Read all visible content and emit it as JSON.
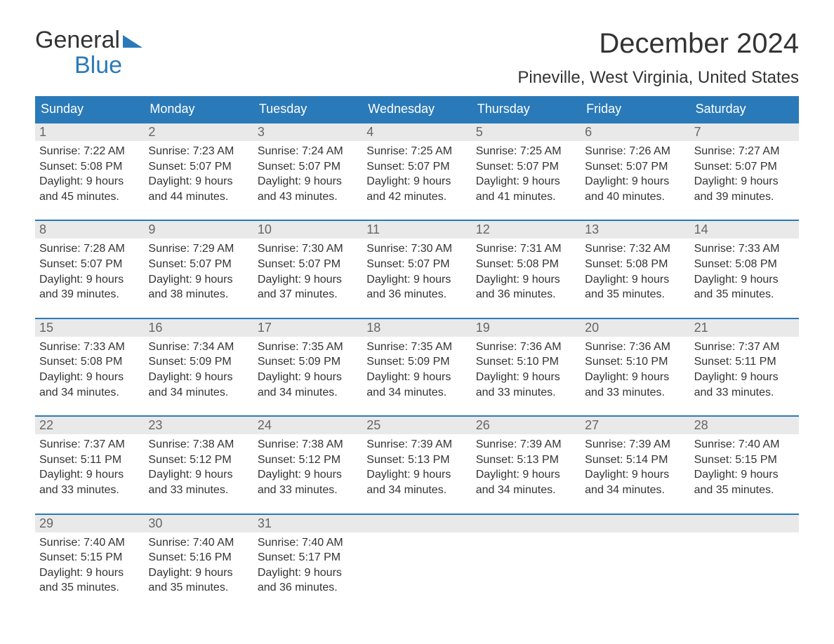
{
  "brand": {
    "general": "General",
    "blue": "Blue"
  },
  "title": "December 2024",
  "location": "Pineville, West Virginia, United States",
  "colors": {
    "header_bg": "#2a7ab9",
    "header_text": "#ffffff",
    "daynum_bg": "#e9e9e9",
    "daynum_text": "#666666",
    "body_text": "#333333",
    "rule": "#2a7ab9",
    "page_bg": "#ffffff"
  },
  "typography": {
    "month_title_pt": 40,
    "location_pt": 24,
    "dow_pt": 18,
    "daynum_pt": 18,
    "body_pt": 16
  },
  "dow": [
    "Sunday",
    "Monday",
    "Tuesday",
    "Wednesday",
    "Thursday",
    "Friday",
    "Saturday"
  ],
  "labels": {
    "sunrise": "Sunrise:",
    "sunset": "Sunset:",
    "daylight": "Daylight:"
  },
  "weeks": [
    [
      {
        "n": "1",
        "sr": "7:22 AM",
        "ss": "5:08 PM",
        "dl1": "9 hours",
        "dl2": "and 45 minutes."
      },
      {
        "n": "2",
        "sr": "7:23 AM",
        "ss": "5:07 PM",
        "dl1": "9 hours",
        "dl2": "and 44 minutes."
      },
      {
        "n": "3",
        "sr": "7:24 AM",
        "ss": "5:07 PM",
        "dl1": "9 hours",
        "dl2": "and 43 minutes."
      },
      {
        "n": "4",
        "sr": "7:25 AM",
        "ss": "5:07 PM",
        "dl1": "9 hours",
        "dl2": "and 42 minutes."
      },
      {
        "n": "5",
        "sr": "7:25 AM",
        "ss": "5:07 PM",
        "dl1": "9 hours",
        "dl2": "and 41 minutes."
      },
      {
        "n": "6",
        "sr": "7:26 AM",
        "ss": "5:07 PM",
        "dl1": "9 hours",
        "dl2": "and 40 minutes."
      },
      {
        "n": "7",
        "sr": "7:27 AM",
        "ss": "5:07 PM",
        "dl1": "9 hours",
        "dl2": "and 39 minutes."
      }
    ],
    [
      {
        "n": "8",
        "sr": "7:28 AM",
        "ss": "5:07 PM",
        "dl1": "9 hours",
        "dl2": "and 39 minutes."
      },
      {
        "n": "9",
        "sr": "7:29 AM",
        "ss": "5:07 PM",
        "dl1": "9 hours",
        "dl2": "and 38 minutes."
      },
      {
        "n": "10",
        "sr": "7:30 AM",
        "ss": "5:07 PM",
        "dl1": "9 hours",
        "dl2": "and 37 minutes."
      },
      {
        "n": "11",
        "sr": "7:30 AM",
        "ss": "5:07 PM",
        "dl1": "9 hours",
        "dl2": "and 36 minutes."
      },
      {
        "n": "12",
        "sr": "7:31 AM",
        "ss": "5:08 PM",
        "dl1": "9 hours",
        "dl2": "and 36 minutes."
      },
      {
        "n": "13",
        "sr": "7:32 AM",
        "ss": "5:08 PM",
        "dl1": "9 hours",
        "dl2": "and 35 minutes."
      },
      {
        "n": "14",
        "sr": "7:33 AM",
        "ss": "5:08 PM",
        "dl1": "9 hours",
        "dl2": "and 35 minutes."
      }
    ],
    [
      {
        "n": "15",
        "sr": "7:33 AM",
        "ss": "5:08 PM",
        "dl1": "9 hours",
        "dl2": "and 34 minutes."
      },
      {
        "n": "16",
        "sr": "7:34 AM",
        "ss": "5:09 PM",
        "dl1": "9 hours",
        "dl2": "and 34 minutes."
      },
      {
        "n": "17",
        "sr": "7:35 AM",
        "ss": "5:09 PM",
        "dl1": "9 hours",
        "dl2": "and 34 minutes."
      },
      {
        "n": "18",
        "sr": "7:35 AM",
        "ss": "5:09 PM",
        "dl1": "9 hours",
        "dl2": "and 34 minutes."
      },
      {
        "n": "19",
        "sr": "7:36 AM",
        "ss": "5:10 PM",
        "dl1": "9 hours",
        "dl2": "and 33 minutes."
      },
      {
        "n": "20",
        "sr": "7:36 AM",
        "ss": "5:10 PM",
        "dl1": "9 hours",
        "dl2": "and 33 minutes."
      },
      {
        "n": "21",
        "sr": "7:37 AM",
        "ss": "5:11 PM",
        "dl1": "9 hours",
        "dl2": "and 33 minutes."
      }
    ],
    [
      {
        "n": "22",
        "sr": "7:37 AM",
        "ss": "5:11 PM",
        "dl1": "9 hours",
        "dl2": "and 33 minutes."
      },
      {
        "n": "23",
        "sr": "7:38 AM",
        "ss": "5:12 PM",
        "dl1": "9 hours",
        "dl2": "and 33 minutes."
      },
      {
        "n": "24",
        "sr": "7:38 AM",
        "ss": "5:12 PM",
        "dl1": "9 hours",
        "dl2": "and 33 minutes."
      },
      {
        "n": "25",
        "sr": "7:39 AM",
        "ss": "5:13 PM",
        "dl1": "9 hours",
        "dl2": "and 34 minutes."
      },
      {
        "n": "26",
        "sr": "7:39 AM",
        "ss": "5:13 PM",
        "dl1": "9 hours",
        "dl2": "and 34 minutes."
      },
      {
        "n": "27",
        "sr": "7:39 AM",
        "ss": "5:14 PM",
        "dl1": "9 hours",
        "dl2": "and 34 minutes."
      },
      {
        "n": "28",
        "sr": "7:40 AM",
        "ss": "5:15 PM",
        "dl1": "9 hours",
        "dl2": "and 35 minutes."
      }
    ],
    [
      {
        "n": "29",
        "sr": "7:40 AM",
        "ss": "5:15 PM",
        "dl1": "9 hours",
        "dl2": "and 35 minutes."
      },
      {
        "n": "30",
        "sr": "7:40 AM",
        "ss": "5:16 PM",
        "dl1": "9 hours",
        "dl2": "and 35 minutes."
      },
      {
        "n": "31",
        "sr": "7:40 AM",
        "ss": "5:17 PM",
        "dl1": "9 hours",
        "dl2": "and 36 minutes."
      },
      null,
      null,
      null,
      null
    ]
  ]
}
